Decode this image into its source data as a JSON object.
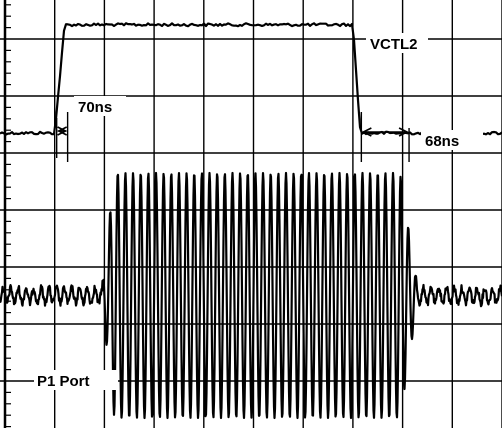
{
  "chart_data": {
    "type": "line",
    "title": "",
    "xlabel": "",
    "ylabel": "",
    "grid": true,
    "grid_divisions": {
      "x": 10,
      "y": 8
    },
    "series": [
      {
        "name": "VCTL2",
        "kind": "control-pulse",
        "baseline_div": 2.65,
        "high_div": 0.75,
        "rise_start_div": 1.0,
        "rise_end_div": 1.2,
        "fall_start_div": 7.0,
        "fall_end_div": 7.15
      },
      {
        "name": "P1 Port",
        "kind": "rf-burst",
        "center_div": 5.5,
        "amplitude_div": 2.15,
        "start_div": 1.95,
        "full_start_div": 2.2,
        "full_end_div": 7.95,
        "end_div": 8.3,
        "cycles_per_div": 6.5
      }
    ],
    "annotations": {
      "rise_time": "70ns",
      "fall_time": "68ns",
      "trace1_label": "VCTL2",
      "trace2_label": "P1 Port"
    }
  }
}
